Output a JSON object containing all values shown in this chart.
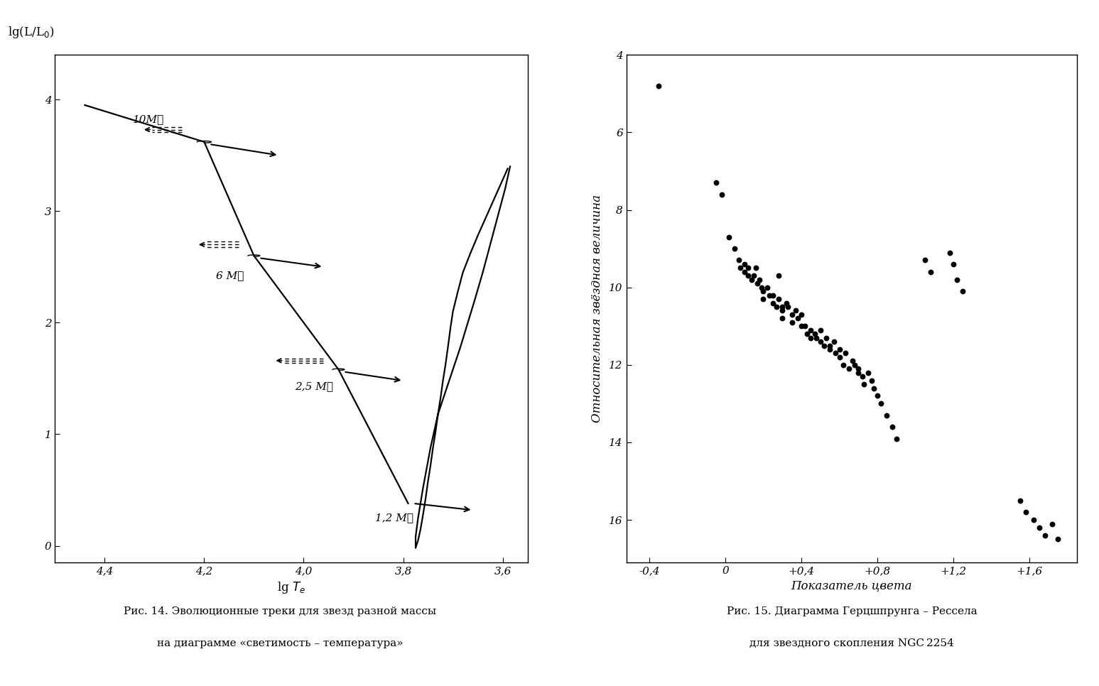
{
  "left_xlim": [
    4.5,
    3.55
  ],
  "left_ylim": [
    -0.15,
    4.4
  ],
  "left_xticks": [
    4.4,
    4.2,
    4.0,
    3.8,
    3.6
  ],
  "left_yticks": [
    0,
    1,
    2,
    3,
    4
  ],
  "left_xtick_labels": [
    "4,4",
    "4,2",
    "4,0",
    "3,8",
    "3,6"
  ],
  "left_ytick_labels": [
    "0",
    "1",
    "2",
    "3",
    "4"
  ],
  "right_xlabel": "Показатель цвета",
  "right_ylabel": "Относительная звёздная величина",
  "right_xlim": [
    -0.52,
    1.85
  ],
  "right_ylim": [
    17.1,
    4.0
  ],
  "right_xticks": [
    -0.4,
    0.0,
    0.4,
    0.8,
    1.2,
    1.6
  ],
  "right_yticks": [
    4,
    6,
    8,
    10,
    12,
    14,
    16
  ],
  "right_xtick_labels": [
    "-0,4",
    "0",
    "+0,4",
    "+0,8",
    "+1,2",
    "+1,6"
  ],
  "right_ytick_labels": [
    "4",
    "6",
    "8",
    "10",
    "12",
    "14",
    "16"
  ],
  "caption_left": "Рис. 14. Эволюционные треки для звезд разной массы",
  "caption_left2": "на диаграмме «светимость – температура»",
  "caption_right": "Рис. 15. Диаграмма Герцшпрунга – Рессела",
  "caption_right2": "для звездного скопления NGC 2254",
  "scatter_x": [
    -0.35,
    -0.05,
    -0.02,
    0.02,
    0.05,
    0.07,
    0.08,
    0.1,
    0.1,
    0.12,
    0.12,
    0.14,
    0.15,
    0.16,
    0.17,
    0.18,
    0.19,
    0.2,
    0.2,
    0.22,
    0.23,
    0.25,
    0.25,
    0.27,
    0.28,
    0.28,
    0.3,
    0.3,
    0.3,
    0.32,
    0.33,
    0.35,
    0.35,
    0.37,
    0.38,
    0.4,
    0.4,
    0.42,
    0.43,
    0.45,
    0.45,
    0.47,
    0.48,
    0.5,
    0.5,
    0.52,
    0.53,
    0.55,
    0.55,
    0.57,
    0.58,
    0.6,
    0.6,
    0.62,
    0.63,
    0.65,
    0.67,
    0.68,
    0.7,
    0.7,
    0.72,
    0.73,
    0.75,
    0.77,
    0.78,
    0.8,
    0.82,
    0.85,
    0.88,
    0.9,
    1.05,
    1.08,
    1.18,
    1.2,
    1.22,
    1.25,
    1.55,
    1.58,
    1.62,
    1.65,
    1.68,
    1.72,
    1.75
  ],
  "scatter_y": [
    4.8,
    7.3,
    7.6,
    8.7,
    9.0,
    9.3,
    9.5,
    9.4,
    9.6,
    9.5,
    9.7,
    9.8,
    9.7,
    9.5,
    9.9,
    9.8,
    10.0,
    10.1,
    10.3,
    10.0,
    10.2,
    10.2,
    10.4,
    10.5,
    9.7,
    10.3,
    10.5,
    10.6,
    10.8,
    10.4,
    10.5,
    10.7,
    10.9,
    10.6,
    10.8,
    11.0,
    10.7,
    11.0,
    11.2,
    11.1,
    11.3,
    11.2,
    11.3,
    11.1,
    11.4,
    11.5,
    11.3,
    11.6,
    11.5,
    11.4,
    11.7,
    11.6,
    11.8,
    12.0,
    11.7,
    12.1,
    11.9,
    12.0,
    12.2,
    12.1,
    12.3,
    12.5,
    12.2,
    12.4,
    12.6,
    12.8,
    13.0,
    13.3,
    13.6,
    13.9,
    9.3,
    9.6,
    9.1,
    9.4,
    9.8,
    10.1,
    15.5,
    15.8,
    16.0,
    16.2,
    16.4,
    16.1,
    16.5
  ]
}
